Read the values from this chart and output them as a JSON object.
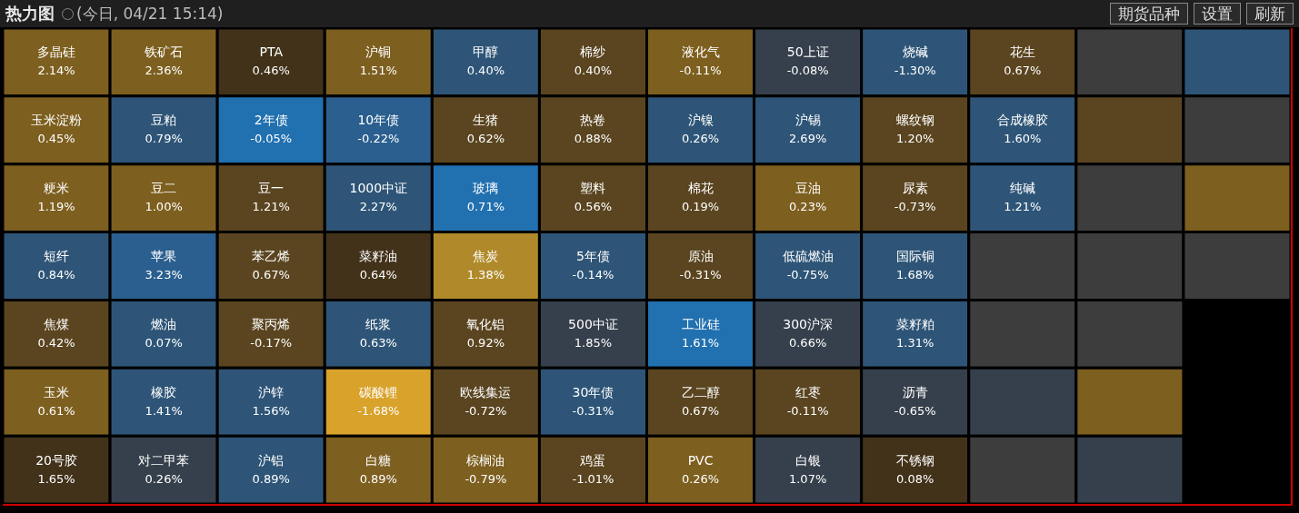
{
  "chart_data": {
    "type": "other",
    "title": "热力图",
    "subtitle": "(今日, 04/21 15:14)",
    "annotations": [
      "期货品种",
      "设置",
      "刷新"
    ],
    "categories": [
      "多晶硅",
      "玉米淀粉",
      "粳米",
      "短纤",
      "焦煤",
      "玉米",
      "20号胶",
      "铁矿石",
      "豆粕",
      "豆二",
      "苹果",
      "燃油",
      "橡胶",
      "对二甲苯",
      "PTA",
      "2年债",
      "豆一",
      "苯乙烯",
      "聚丙烯",
      "沪锌",
      "沪铝",
      "沪铜",
      "10年债",
      "1000中证",
      "菜籽油",
      "纸浆",
      "碳酸锂",
      "白糖",
      "甲醇",
      "生猪",
      "玻璃",
      "焦炭",
      "氧化铝",
      "欧线集运",
      "棕榈油",
      "棉纱",
      "热卷",
      "塑料",
      "5年债",
      "500中证",
      "30年债",
      "鸡蛋",
      "液化气",
      "沪镍",
      "棉花",
      "原油",
      "工业硅",
      "乙二醇",
      "PVC",
      "50上证",
      "沪锡",
      "豆油",
      "低硫燃油",
      "300沪深",
      "红枣",
      "白银",
      "烧碱",
      "螺纹钢",
      "尿素",
      "国际铜",
      "菜籽粕",
      "沥青",
      "不锈钢",
      "花生",
      "合成橡胶",
      "纯碱",
      null,
      null,
      null,
      null,
      null,
      null,
      null,
      null,
      null,
      null,
      null,
      null,
      null,
      null,
      null
    ],
    "values": [
      2.14,
      0.45,
      1.19,
      0.84,
      0.42,
      0.61,
      1.65,
      2.36,
      0.79,
      1.0,
      3.23,
      0.07,
      1.41,
      0.26,
      0.46,
      -0.05,
      1.21,
      0.67,
      -0.17,
      1.56,
      0.89,
      1.51,
      -0.22,
      2.27,
      0.64,
      0.63,
      -1.68,
      0.89,
      0.4,
      0.62,
      0.71,
      1.38,
      0.92,
      -0.72,
      -0.79,
      0.4,
      0.88,
      0.56,
      -0.14,
      1.85,
      -0.31,
      -1.01,
      -0.11,
      0.26,
      0.19,
      -0.31,
      1.61,
      0.67,
      0.26,
      -0.08,
      2.69,
      0.23,
      -0.75,
      0.66,
      -0.11,
      1.07,
      -1.3,
      1.2,
      -0.73,
      1.68,
      1.31,
      -0.65,
      0.08,
      0.67,
      1.6,
      1.21,
      null,
      null,
      null,
      null,
      null,
      null,
      null,
      null,
      null,
      null,
      null,
      null,
      null,
      null,
      null
    ],
    "value_labels": [
      "2.14%",
      "0.45%",
      "1.19%",
      "0.84%",
      "0.42%",
      "0.61%",
      "1.65%",
      "2.36%",
      "0.79%",
      "1.00%",
      "3.23%",
      "0.07%",
      "1.41%",
      "0.26%",
      "0.46%",
      "-0.05%",
      "1.21%",
      "0.67%",
      "-0.17%",
      "1.56%",
      "0.89%",
      "1.51%",
      "-0.22%",
      "2.27%",
      "0.64%",
      "0.63%",
      "-1.68%",
      "0.89%",
      "0.40%",
      "0.62%",
      "0.71%",
      "1.38%",
      "0.92%",
      "-0.72%",
      "-0.79%",
      "0.40%",
      "0.88%",
      "0.56%",
      "-0.14%",
      "1.85%",
      "-0.31%",
      "-1.01%",
      "-0.11%",
      "0.26%",
      "0.19%",
      "-0.31%",
      "1.61%",
      "0.67%",
      "0.26%",
      "-0.08%",
      "2.69%",
      "0.23%",
      "-0.75%",
      "0.66%",
      "-0.11%",
      "1.07%",
      "-1.30%",
      "1.20%",
      "-0.73%",
      "1.68%",
      "1.31%",
      "-0.65%",
      "0.08%",
      "0.67%",
      "1.60%",
      "1.21%",
      null,
      null,
      null,
      null,
      null,
      null,
      null,
      null,
      null,
      null,
      null,
      null,
      null,
      null,
      null
    ],
    "colors": [
      "#7d5f1f",
      "#7d5f1f",
      "#7d5f1f",
      "#2e5577",
      "#5a4520",
      "#7d5f1f",
      "#42321a",
      "#7d5f1f",
      "#2e5577",
      "#7d5f1f",
      "#2a5f8f",
      "#2e5577",
      "#2e5577",
      "#36404c",
      "#42321a",
      "#2170b0",
      "#5a4520",
      "#5a4520",
      "#5a4520",
      "#2e5577",
      "#2e5577",
      "#7d5f1f",
      "#2a5f8f",
      "#2e5577",
      "#42321a",
      "#2e5577",
      "#d9a22b",
      "#7d5f1f",
      "#2e5577",
      "#5a4520",
      "#2170b0",
      "#b08a2a",
      "#5a4520",
      "#5a4520",
      "#7d5f1f",
      "#5a4520",
      "#5a4520",
      "#5a4520",
      "#2e5577",
      "#36404c",
      "#2e5577",
      "#5a4520",
      "#7d5f1f",
      "#2e5577",
      "#5a4520",
      "#5a4520",
      "#2170b0",
      "#5a4520",
      "#7d5f1f",
      "#36404c",
      "#2e5577",
      "#7d5f1f",
      "#2e5577",
      "#36404c",
      "#5a4520",
      "#36404c",
      "#2e5577",
      "#5a4520",
      "#5a4520",
      "#2e5577",
      "#2e5577",
      "#36404c",
      "#42321a",
      "#5a4520",
      "#2e5577",
      "#2e5577",
      "#3d3d3d",
      "#3d3d3d",
      "#36404c",
      "#3d3d3d",
      "#3d3d3d",
      "#5a4520",
      "#3d3d3d",
      "#3d3d3d",
      "#3d3d3d",
      "#7d5f1f",
      "#36404c",
      "#2e5577",
      "#3d3d3d",
      "#7d5f1f",
      "#3d3d3d"
    ]
  }
}
